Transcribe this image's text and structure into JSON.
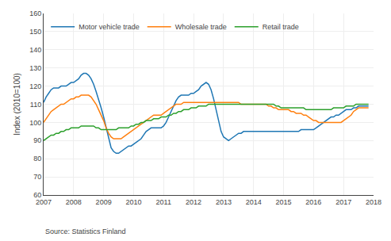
{
  "chart_data": {
    "type": "line",
    "ylabel": "Index (2010=100)",
    "annotations": [
      "Source: Statistics Finland"
    ],
    "xlim": [
      2007.0,
      2018.0
    ],
    "xticks": [
      2007,
      2008,
      2009,
      2010,
      2011,
      2012,
      2013,
      2014,
      2015,
      2016,
      2017,
      2018
    ],
    "ylim": [
      60,
      160
    ],
    "yticks": [
      60,
      70,
      80,
      90,
      100,
      110,
      120,
      130,
      140,
      150,
      160
    ],
    "grid": true,
    "legend": "upper left",
    "x": [
      2007.0,
      2007.083,
      2007.167,
      2007.25,
      2007.333,
      2007.417,
      2007.5,
      2007.583,
      2007.667,
      2007.75,
      2007.833,
      2007.917,
      2008.0,
      2008.083,
      2008.167,
      2008.25,
      2008.333,
      2008.417,
      2008.5,
      2008.583,
      2008.667,
      2008.75,
      2008.833,
      2008.917,
      2009.0,
      2009.083,
      2009.167,
      2009.25,
      2009.333,
      2009.417,
      2009.5,
      2009.583,
      2009.667,
      2009.75,
      2009.833,
      2009.917,
      2010.0,
      2010.083,
      2010.167,
      2010.25,
      2010.333,
      2010.417,
      2010.5,
      2010.583,
      2010.667,
      2010.75,
      2010.833,
      2010.917,
      2011.0,
      2011.083,
      2011.167,
      2011.25,
      2011.333,
      2011.417,
      2011.5,
      2011.583,
      2011.667,
      2011.75,
      2011.833,
      2011.917,
      2012.0,
      2012.083,
      2012.167,
      2012.25,
      2012.333,
      2012.417,
      2012.5,
      2012.583,
      2012.667,
      2012.75,
      2012.833,
      2012.917,
      2013.0,
      2013.083,
      2013.167,
      2013.25,
      2013.333,
      2013.417,
      2013.5,
      2013.583,
      2013.667,
      2013.75,
      2013.833,
      2013.917,
      2014.0,
      2014.083,
      2014.167,
      2014.25,
      2014.333,
      2014.417,
      2014.5,
      2014.583,
      2014.667,
      2014.75,
      2014.833,
      2014.917,
      2015.0,
      2015.083,
      2015.167,
      2015.25,
      2015.333,
      2015.417,
      2015.5,
      2015.583,
      2015.667,
      2015.75,
      2015.833,
      2015.917,
      2016.0,
      2016.083,
      2016.167,
      2016.25,
      2016.333,
      2016.417,
      2016.5,
      2016.583,
      2016.667,
      2016.75,
      2016.833,
      2016.917,
      2017.0,
      2017.083,
      2017.167,
      2017.25,
      2017.333,
      2017.417,
      2017.5,
      2017.583,
      2017.667,
      2017.75,
      2017.833
    ],
    "series": [
      {
        "name": "Motor vehicle trade",
        "values": [
          111,
          114,
          116,
          118,
          119,
          119,
          119,
          120,
          120,
          120,
          121,
          122,
          122,
          123,
          124,
          126,
          127,
          127,
          126,
          124,
          121,
          117,
          113,
          108,
          103,
          97,
          91,
          86,
          84,
          83,
          83,
          84,
          85,
          86,
          87,
          87,
          88,
          89,
          90,
          91,
          93,
          95,
          96,
          97,
          97,
          97,
          97,
          97,
          98,
          100,
          103,
          106,
          109,
          112,
          114,
          115,
          115,
          115,
          115,
          116,
          116,
          117,
          118,
          120,
          121,
          122,
          121,
          118,
          113,
          107,
          101,
          95,
          92,
          91,
          90,
          91,
          92,
          93,
          94,
          94,
          95,
          95,
          95,
          95,
          95,
          95,
          95,
          95,
          95,
          95,
          95,
          95,
          95,
          95,
          95,
          95,
          95,
          95,
          95,
          95,
          95,
          95,
          95,
          96,
          96,
          96,
          96,
          96,
          96,
          97,
          98,
          99,
          100,
          101,
          102,
          103,
          103,
          104,
          104,
          105,
          106,
          107,
          107,
          107,
          108,
          108,
          109,
          109,
          109,
          109,
          109
        ]
      },
      {
        "name": "Wholesale trade",
        "values": [
          100,
          102,
          104,
          106,
          107,
          108,
          109,
          110,
          110,
          111,
          112,
          113,
          113,
          114,
          114,
          115,
          115,
          115,
          115,
          114,
          112,
          110,
          107,
          104,
          101,
          97,
          94,
          92,
          91,
          91,
          91,
          91,
          92,
          93,
          94,
          95,
          96,
          97,
          98,
          99,
          100,
          101,
          102,
          103,
          104,
          104,
          104,
          104,
          105,
          106,
          107,
          108,
          109,
          110,
          110,
          110,
          111,
          111,
          111,
          111,
          111,
          111,
          111,
          111,
          111,
          111,
          111,
          111,
          111,
          111,
          111,
          111,
          111,
          111,
          111,
          111,
          111,
          111,
          111,
          110,
          110,
          110,
          110,
          110,
          110,
          110,
          110,
          110,
          110,
          110,
          109,
          109,
          108,
          108,
          107,
          107,
          107,
          107,
          107,
          106,
          106,
          105,
          105,
          105,
          104,
          104,
          103,
          102,
          101,
          101,
          100,
          100,
          100,
          100,
          100,
          100,
          100,
          100,
          100,
          100,
          101,
          102,
          103,
          104,
          106,
          107,
          108,
          108,
          108,
          108,
          108
        ]
      },
      {
        "name": "Retail trade",
        "values": [
          90,
          91,
          92,
          93,
          93,
          94,
          94,
          95,
          95,
          96,
          96,
          97,
          97,
          97,
          97,
          98,
          98,
          98,
          98,
          98,
          98,
          97,
          97,
          96,
          96,
          96,
          96,
          96,
          96,
          96,
          97,
          97,
          97,
          97,
          97,
          98,
          98,
          99,
          99,
          100,
          100,
          101,
          101,
          101,
          102,
          102,
          102,
          103,
          103,
          103,
          104,
          104,
          105,
          105,
          106,
          106,
          107,
          107,
          107,
          108,
          108,
          108,
          109,
          109,
          109,
          109,
          110,
          110,
          110,
          110,
          110,
          110,
          110,
          110,
          110,
          110,
          110,
          110,
          110,
          110,
          110,
          110,
          110,
          110,
          110,
          110,
          110,
          110,
          110,
          110,
          110,
          110,
          110,
          109,
          109,
          108,
          108,
          108,
          108,
          108,
          108,
          108,
          108,
          108,
          108,
          107,
          107,
          107,
          107,
          107,
          107,
          107,
          107,
          107,
          107,
          107,
          108,
          108,
          108,
          108,
          108,
          109,
          109,
          109,
          109,
          110,
          110,
          110,
          110,
          110,
          110
        ]
      }
    ]
  }
}
